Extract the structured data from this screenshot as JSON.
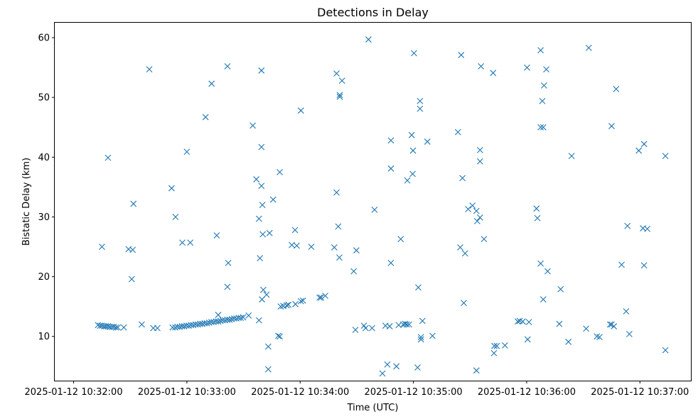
{
  "chart_data": {
    "type": "scatter",
    "title": "Detections in Delay",
    "xlabel": "Time (UTC)",
    "ylabel": "Bistatic Delay (km)",
    "marker": "x",
    "color": "#1f77b4",
    "grid": false,
    "legend": "none",
    "xlim": [
      "2025-01-12 10:31:50",
      "2025-01-12 10:37:27"
    ],
    "ylim": [
      2.6,
      62.5
    ],
    "xticks": [
      "2025-01-12 10:32:00",
      "2025-01-12 10:33:00",
      "2025-01-12 10:34:00",
      "2025-01-12 10:35:00",
      "2025-01-12 10:36:00",
      "2025-01-12 10:37:00"
    ],
    "yticks": [
      10,
      20,
      30,
      40,
      50,
      60
    ],
    "points": [
      [
        "2025-01-12 10:32:12.9",
        11.9
      ],
      [
        "2025-01-12 10:32:14.0",
        11.8
      ],
      [
        "2025-01-12 10:32:15.0",
        11.8
      ],
      [
        "2025-01-12 10:32:16.1",
        11.7
      ],
      [
        "2025-01-12 10:32:17.1",
        11.7
      ],
      [
        "2025-01-12 10:32:18.2",
        11.7
      ],
      [
        "2025-01-12 10:32:19.2",
        11.6
      ],
      [
        "2025-01-12 10:32:20.3",
        11.6
      ],
      [
        "2025-01-12 10:32:21.3",
        11.6
      ],
      [
        "2025-01-12 10:32:22.4",
        11.5
      ],
      [
        "2025-01-12 10:32:23.4",
        11.5
      ],
      [
        "2025-01-12 10:32:26.6",
        11.5
      ],
      [
        "2025-01-12 10:32:15.0",
        25.0
      ],
      [
        "2025-01-12 10:32:18.2",
        39.9
      ],
      [
        "2025-01-12 10:32:29.1",
        24.6
      ],
      [
        "2025-01-12 10:32:31.3",
        24.5
      ],
      [
        "2025-01-12 10:32:30.8",
        19.6
      ],
      [
        "2025-01-12 10:32:31.7",
        32.2
      ],
      [
        "2025-01-12 10:32:36.1",
        12.0
      ],
      [
        "2025-01-12 10:32:40.1",
        54.7
      ],
      [
        "2025-01-12 10:32:42.2",
        11.4
      ],
      [
        "2025-01-12 10:32:44.4",
        11.4
      ],
      [
        "2025-01-12 10:32:51.9",
        34.8
      ],
      [
        "2025-01-12 10:32:54.0",
        30.0
      ],
      [
        "2025-01-12 10:32:52.4",
        11.5
      ],
      [
        "2025-01-12 10:32:53.8",
        11.5
      ],
      [
        "2025-01-12 10:32:55.0",
        11.6
      ],
      [
        "2025-01-12 10:32:56.2",
        11.6
      ],
      [
        "2025-01-12 10:32:57.4",
        11.7
      ],
      [
        "2025-01-12 10:32:58.6",
        11.7
      ],
      [
        "2025-01-12 10:32:59.8",
        11.8
      ],
      [
        "2025-01-12 10:33:01.0",
        11.8
      ],
      [
        "2025-01-12 10:33:02.2",
        11.9
      ],
      [
        "2025-01-12 10:33:03.4",
        11.9
      ],
      [
        "2025-01-12 10:33:04.6",
        12.0
      ],
      [
        "2025-01-12 10:33:05.8",
        12.0
      ],
      [
        "2025-01-12 10:33:07.0",
        12.1
      ],
      [
        "2025-01-12 10:33:08.2",
        12.1
      ],
      [
        "2025-01-12 10:33:09.4",
        12.2
      ],
      [
        "2025-01-12 10:33:10.6",
        12.2
      ],
      [
        "2025-01-12 10:33:11.8",
        12.3
      ],
      [
        "2025-01-12 10:33:13.0",
        12.4
      ],
      [
        "2025-01-12 10:33:14.2",
        12.4
      ],
      [
        "2025-01-12 10:33:15.4",
        12.5
      ],
      [
        "2025-01-12 10:33:16.6",
        12.5
      ],
      [
        "2025-01-12 10:33:17.8",
        12.6
      ],
      [
        "2025-01-12 10:33:19.0",
        12.7
      ],
      [
        "2025-01-12 10:33:20.2",
        12.7
      ],
      [
        "2025-01-12 10:33:21.4",
        12.8
      ],
      [
        "2025-01-12 10:33:22.6",
        12.8
      ],
      [
        "2025-01-12 10:33:23.8",
        12.9
      ],
      [
        "2025-01-12 10:33:25.0",
        13.0
      ],
      [
        "2025-01-12 10:33:26.2",
        13.0
      ],
      [
        "2025-01-12 10:33:27.4",
        13.1
      ],
      [
        "2025-01-12 10:33:28.6",
        13.1
      ],
      [
        "2025-01-12 10:33:29.8",
        13.2
      ],
      [
        "2025-01-12 10:33:32.7",
        13.5
      ],
      [
        "2025-01-12 10:33:16.6",
        13.6
      ],
      [
        "2025-01-12 10:32:57.6",
        25.7
      ],
      [
        "2025-01-12 10:33:01.8",
        25.7
      ],
      [
        "2025-01-12 10:33:00.0",
        40.9
      ],
      [
        "2025-01-12 10:33:09.9",
        46.7
      ],
      [
        "2025-01-12 10:33:13.1",
        52.3
      ],
      [
        "2025-01-12 10:33:15.8",
        26.9
      ],
      [
        "2025-01-12 10:33:21.5",
        55.2
      ],
      [
        "2025-01-12 10:33:21.9",
        22.3
      ],
      [
        "2025-01-12 10:33:21.5",
        18.3
      ],
      [
        "2025-01-12 10:33:34.9",
        45.3
      ],
      [
        "2025-01-12 10:33:36.8",
        36.3
      ],
      [
        "2025-01-12 10:33:38.2",
        29.7
      ],
      [
        "2025-01-12 10:33:38.7",
        23.1
      ],
      [
        "2025-01-12 10:33:38.2",
        12.7
      ],
      [
        "2025-01-12 10:33:39.5",
        41.7
      ],
      [
        "2025-01-12 10:33:39.5",
        35.2
      ],
      [
        "2025-01-12 10:33:40.0",
        32.0
      ],
      [
        "2025-01-12 10:33:40.2",
        27.1
      ],
      [
        "2025-01-12 10:33:39.8",
        16.2
      ],
      [
        "2025-01-12 10:33:40.5",
        17.8
      ],
      [
        "2025-01-12 10:33:39.5",
        54.5
      ],
      [
        "2025-01-12 10:33:42.2",
        17.0
      ],
      [
        "2025-01-12 10:33:43.1",
        8.3
      ],
      [
        "2025-01-12 10:33:43.1",
        4.5
      ],
      [
        "2025-01-12 10:33:43.8",
        27.3
      ],
      [
        "2025-01-12 10:33:45.7",
        32.9
      ],
      [
        "2025-01-12 10:33:48.4",
        10.1
      ],
      [
        "2025-01-12 10:33:49.2",
        10.0
      ],
      [
        "2025-01-12 10:33:49.2",
        37.5
      ],
      [
        "2025-01-12 10:33:49.7",
        15.0
      ],
      [
        "2025-01-12 10:33:51.1",
        15.1
      ],
      [
        "2025-01-12 10:33:52.9",
        15.2
      ],
      [
        "2025-01-12 10:33:53.8",
        15.3
      ],
      [
        "2025-01-12 10:33:55.6",
        25.3
      ],
      [
        "2025-01-12 10:33:57.3",
        27.8
      ],
      [
        "2025-01-12 10:33:57.5",
        15.4
      ],
      [
        "2025-01-12 10:33:58.2",
        25.2
      ],
      [
        "2025-01-12 10:34:00.4",
        15.9
      ],
      [
        "2025-01-12 10:34:01.5",
        16.0
      ],
      [
        "2025-01-12 10:34:00.4",
        47.8
      ],
      [
        "2025-01-12 10:34:05.9",
        25.0
      ],
      [
        "2025-01-12 10:34:10.3",
        16.5
      ],
      [
        "2025-01-12 10:34:11.1",
        16.5
      ],
      [
        "2025-01-12 10:34:13.3",
        16.8
      ],
      [
        "2025-01-12 10:34:18.1",
        24.9
      ],
      [
        "2025-01-12 10:34:19.3",
        54.0
      ],
      [
        "2025-01-12 10:34:19.3",
        34.1
      ],
      [
        "2025-01-12 10:34:20.2",
        28.4
      ],
      [
        "2025-01-12 10:34:20.8",
        23.2
      ],
      [
        "2025-01-12 10:34:21.0",
        50.4
      ],
      [
        "2025-01-12 10:34:21.0",
        50.1
      ],
      [
        "2025-01-12 10:34:22.2",
        52.8
      ],
      [
        "2025-01-12 10:34:28.4",
        20.9
      ],
      [
        "2025-01-12 10:34:29.3",
        11.1
      ],
      [
        "2025-01-12 10:34:29.8",
        24.4
      ],
      [
        "2025-01-12 10:34:33.8",
        11.8
      ],
      [
        "2025-01-12 10:34:34.7",
        11.4
      ],
      [
        "2025-01-12 10:34:36.2",
        59.7
      ],
      [
        "2025-01-12 10:34:38.1",
        11.4
      ],
      [
        "2025-01-12 10:34:39.4",
        31.2
      ],
      [
        "2025-01-12 10:34:43.6",
        3.8
      ],
      [
        "2025-01-12 10:34:45.2",
        11.8
      ],
      [
        "2025-01-12 10:34:46.2",
        5.3
      ],
      [
        "2025-01-12 10:34:47.4",
        11.7
      ],
      [
        "2025-01-12 10:34:48.1",
        42.8
      ],
      [
        "2025-01-12 10:34:48.1",
        38.1
      ],
      [
        "2025-01-12 10:34:48.1",
        22.3
      ],
      [
        "2025-01-12 10:34:51.0",
        5.0
      ],
      [
        "2025-01-12 10:34:52.2",
        11.9
      ],
      [
        "2025-01-12 10:34:53.3",
        26.3
      ],
      [
        "2025-01-12 10:34:54.6",
        12.0
      ],
      [
        "2025-01-12 10:34:55.6",
        12.1
      ],
      [
        "2025-01-12 10:34:56.5",
        12.0
      ],
      [
        "2025-01-12 10:34:56.8",
        36.1
      ],
      [
        "2025-01-12 10:34:57.7",
        12.0
      ],
      [
        "2025-01-12 10:34:59.1",
        43.7
      ],
      [
        "2025-01-12 10:34:59.6",
        37.2
      ],
      [
        "2025-01-12 10:34:59.8",
        41.1
      ],
      [
        "2025-01-12 10:35:00.3",
        57.4
      ],
      [
        "2025-01-12 10:35:02.2",
        4.8
      ],
      [
        "2025-01-12 10:35:02.6",
        18.2
      ],
      [
        "2025-01-12 10:35:03.5",
        49.4
      ],
      [
        "2025-01-12 10:35:03.5",
        48.1
      ],
      [
        "2025-01-12 10:35:04.0",
        9.5
      ],
      [
        "2025-01-12 10:35:04.0",
        9.9
      ],
      [
        "2025-01-12 10:35:04.8",
        12.6
      ],
      [
        "2025-01-12 10:35:07.4",
        42.6
      ],
      [
        "2025-01-12 10:35:10.1",
        10.1
      ],
      [
        "2025-01-12 10:35:23.6",
        44.2
      ],
      [
        "2025-01-12 10:35:24.8",
        24.9
      ],
      [
        "2025-01-12 10:35:25.3",
        57.1
      ],
      [
        "2025-01-12 10:35:26.0",
        36.5
      ],
      [
        "2025-01-12 10:35:26.7",
        15.6
      ],
      [
        "2025-01-12 10:35:27.4",
        23.9
      ],
      [
        "2025-01-12 10:35:29.0",
        31.3
      ],
      [
        "2025-01-12 10:35:31.3",
        31.9
      ],
      [
        "2025-01-12 10:35:33.4",
        31.0
      ],
      [
        "2025-01-12 10:35:33.4",
        4.3
      ],
      [
        "2025-01-12 10:35:33.8",
        29.3
      ],
      [
        "2025-01-12 10:35:35.3",
        29.9
      ],
      [
        "2025-01-12 10:35:35.3",
        41.2
      ],
      [
        "2025-01-12 10:35:35.3",
        39.3
      ],
      [
        "2025-01-12 10:35:35.8",
        55.2
      ],
      [
        "2025-01-12 10:35:37.4",
        26.3
      ],
      [
        "2025-01-12 10:35:42.2",
        54.1
      ],
      [
        "2025-01-12 10:35:42.7",
        7.2
      ],
      [
        "2025-01-12 10:35:42.9",
        8.4
      ],
      [
        "2025-01-12 10:35:44.2",
        8.4
      ],
      [
        "2025-01-12 10:35:48.5",
        8.5
      ],
      [
        "2025-01-12 10:35:55.3",
        12.5
      ],
      [
        "2025-01-12 10:35:56.3",
        12.6
      ],
      [
        "2025-01-12 10:35:57.9",
        12.5
      ],
      [
        "2025-01-12 10:36:00.5",
        9.5
      ],
      [
        "2025-01-12 10:36:01.2",
        12.4
      ],
      [
        "2025-01-12 10:36:00.2",
        55.0
      ],
      [
        "2025-01-12 10:36:05.2",
        31.4
      ],
      [
        "2025-01-12 10:36:05.7",
        29.8
      ],
      [
        "2025-01-12 10:36:07.4",
        57.9
      ],
      [
        "2025-01-12 10:36:07.4",
        45.0
      ],
      [
        "2025-01-12 10:36:07.4",
        22.2
      ],
      [
        "2025-01-12 10:36:08.3",
        49.4
      ],
      [
        "2025-01-12 10:36:08.8",
        45.0
      ],
      [
        "2025-01-12 10:36:08.8",
        16.2
      ],
      [
        "2025-01-12 10:36:09.2",
        52.0
      ],
      [
        "2025-01-12 10:36:10.4",
        54.7
      ],
      [
        "2025-01-12 10:36:11.1",
        20.9
      ],
      [
        "2025-01-12 10:36:17.3",
        12.1
      ],
      [
        "2025-01-12 10:36:18.0",
        17.9
      ],
      [
        "2025-01-12 10:36:22.1",
        9.1
      ],
      [
        "2025-01-12 10:36:23.8",
        40.2
      ],
      [
        "2025-01-12 10:36:31.5",
        11.3
      ],
      [
        "2025-01-12 10:36:32.9",
        58.3
      ],
      [
        "2025-01-12 10:36:37.2",
        10.0
      ],
      [
        "2025-01-12 10:36:38.6",
        9.9
      ],
      [
        "2025-01-12 10:36:44.2",
        12.0
      ],
      [
        "2025-01-12 10:36:45.0",
        45.2
      ],
      [
        "2025-01-12 10:36:45.0",
        12.0
      ],
      [
        "2025-01-12 10:36:46.2",
        11.7
      ],
      [
        "2025-01-12 10:36:47.4",
        51.4
      ],
      [
        "2025-01-12 10:36:50.3",
        22.0
      ],
      [
        "2025-01-12 10:36:52.7",
        14.2
      ],
      [
        "2025-01-12 10:36:53.4",
        28.5
      ],
      [
        "2025-01-12 10:36:54.4",
        10.4
      ],
      [
        "2025-01-12 10:36:59.4",
        41.1
      ],
      [
        "2025-01-12 10:37:01.6",
        28.1
      ],
      [
        "2025-01-12 10:37:02.2",
        42.2
      ],
      [
        "2025-01-12 10:37:02.2",
        21.9
      ],
      [
        "2025-01-12 10:37:03.9",
        28.0
      ],
      [
        "2025-01-12 10:37:13.5",
        40.2
      ],
      [
        "2025-01-12 10:37:13.5",
        7.7
      ]
    ]
  }
}
